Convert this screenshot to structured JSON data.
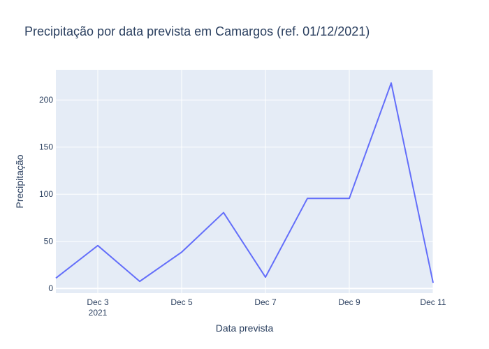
{
  "chart_data": {
    "type": "line",
    "title": "Precipitação por data prevista em Camargos (ref. 01/12/2021)",
    "xlabel": "Data prevista",
    "ylabel": "Precipitação",
    "x": [
      "2021-12-02",
      "2021-12-03",
      "2021-12-04",
      "2021-12-05",
      "2021-12-06",
      "2021-12-07",
      "2021-12-08",
      "2021-12-09",
      "2021-12-10",
      "2021-12-11"
    ],
    "series": [
      {
        "values": [
          11,
          45.5,
          7.5,
          38.5,
          80.5,
          12,
          95.5,
          95.5,
          218,
          6
        ],
        "color": "#636efa"
      }
    ],
    "xlim": [
      "2021-12-02",
      "2021-12-11"
    ],
    "ylim": [
      -5,
      232
    ],
    "x_ticks": [
      {
        "x": "2021-12-03",
        "label": "Dec 3",
        "sublabel": "2021"
      },
      {
        "x": "2021-12-05",
        "label": "Dec 5",
        "sublabel": ""
      },
      {
        "x": "2021-12-07",
        "label": "Dec 7",
        "sublabel": ""
      },
      {
        "x": "2021-12-09",
        "label": "Dec 9",
        "sublabel": ""
      },
      {
        "x": "2021-12-11",
        "label": "Dec 11",
        "sublabel": ""
      }
    ],
    "y_ticks": [
      {
        "value": 0,
        "label": "0"
      },
      {
        "value": 50,
        "label": "50"
      },
      {
        "value": 100,
        "label": "100"
      },
      {
        "value": 150,
        "label": "150"
      },
      {
        "value": 200,
        "label": "200"
      }
    ],
    "grid": true,
    "plot_background": "#e5ecf6",
    "grid_color": "#ffffff"
  }
}
